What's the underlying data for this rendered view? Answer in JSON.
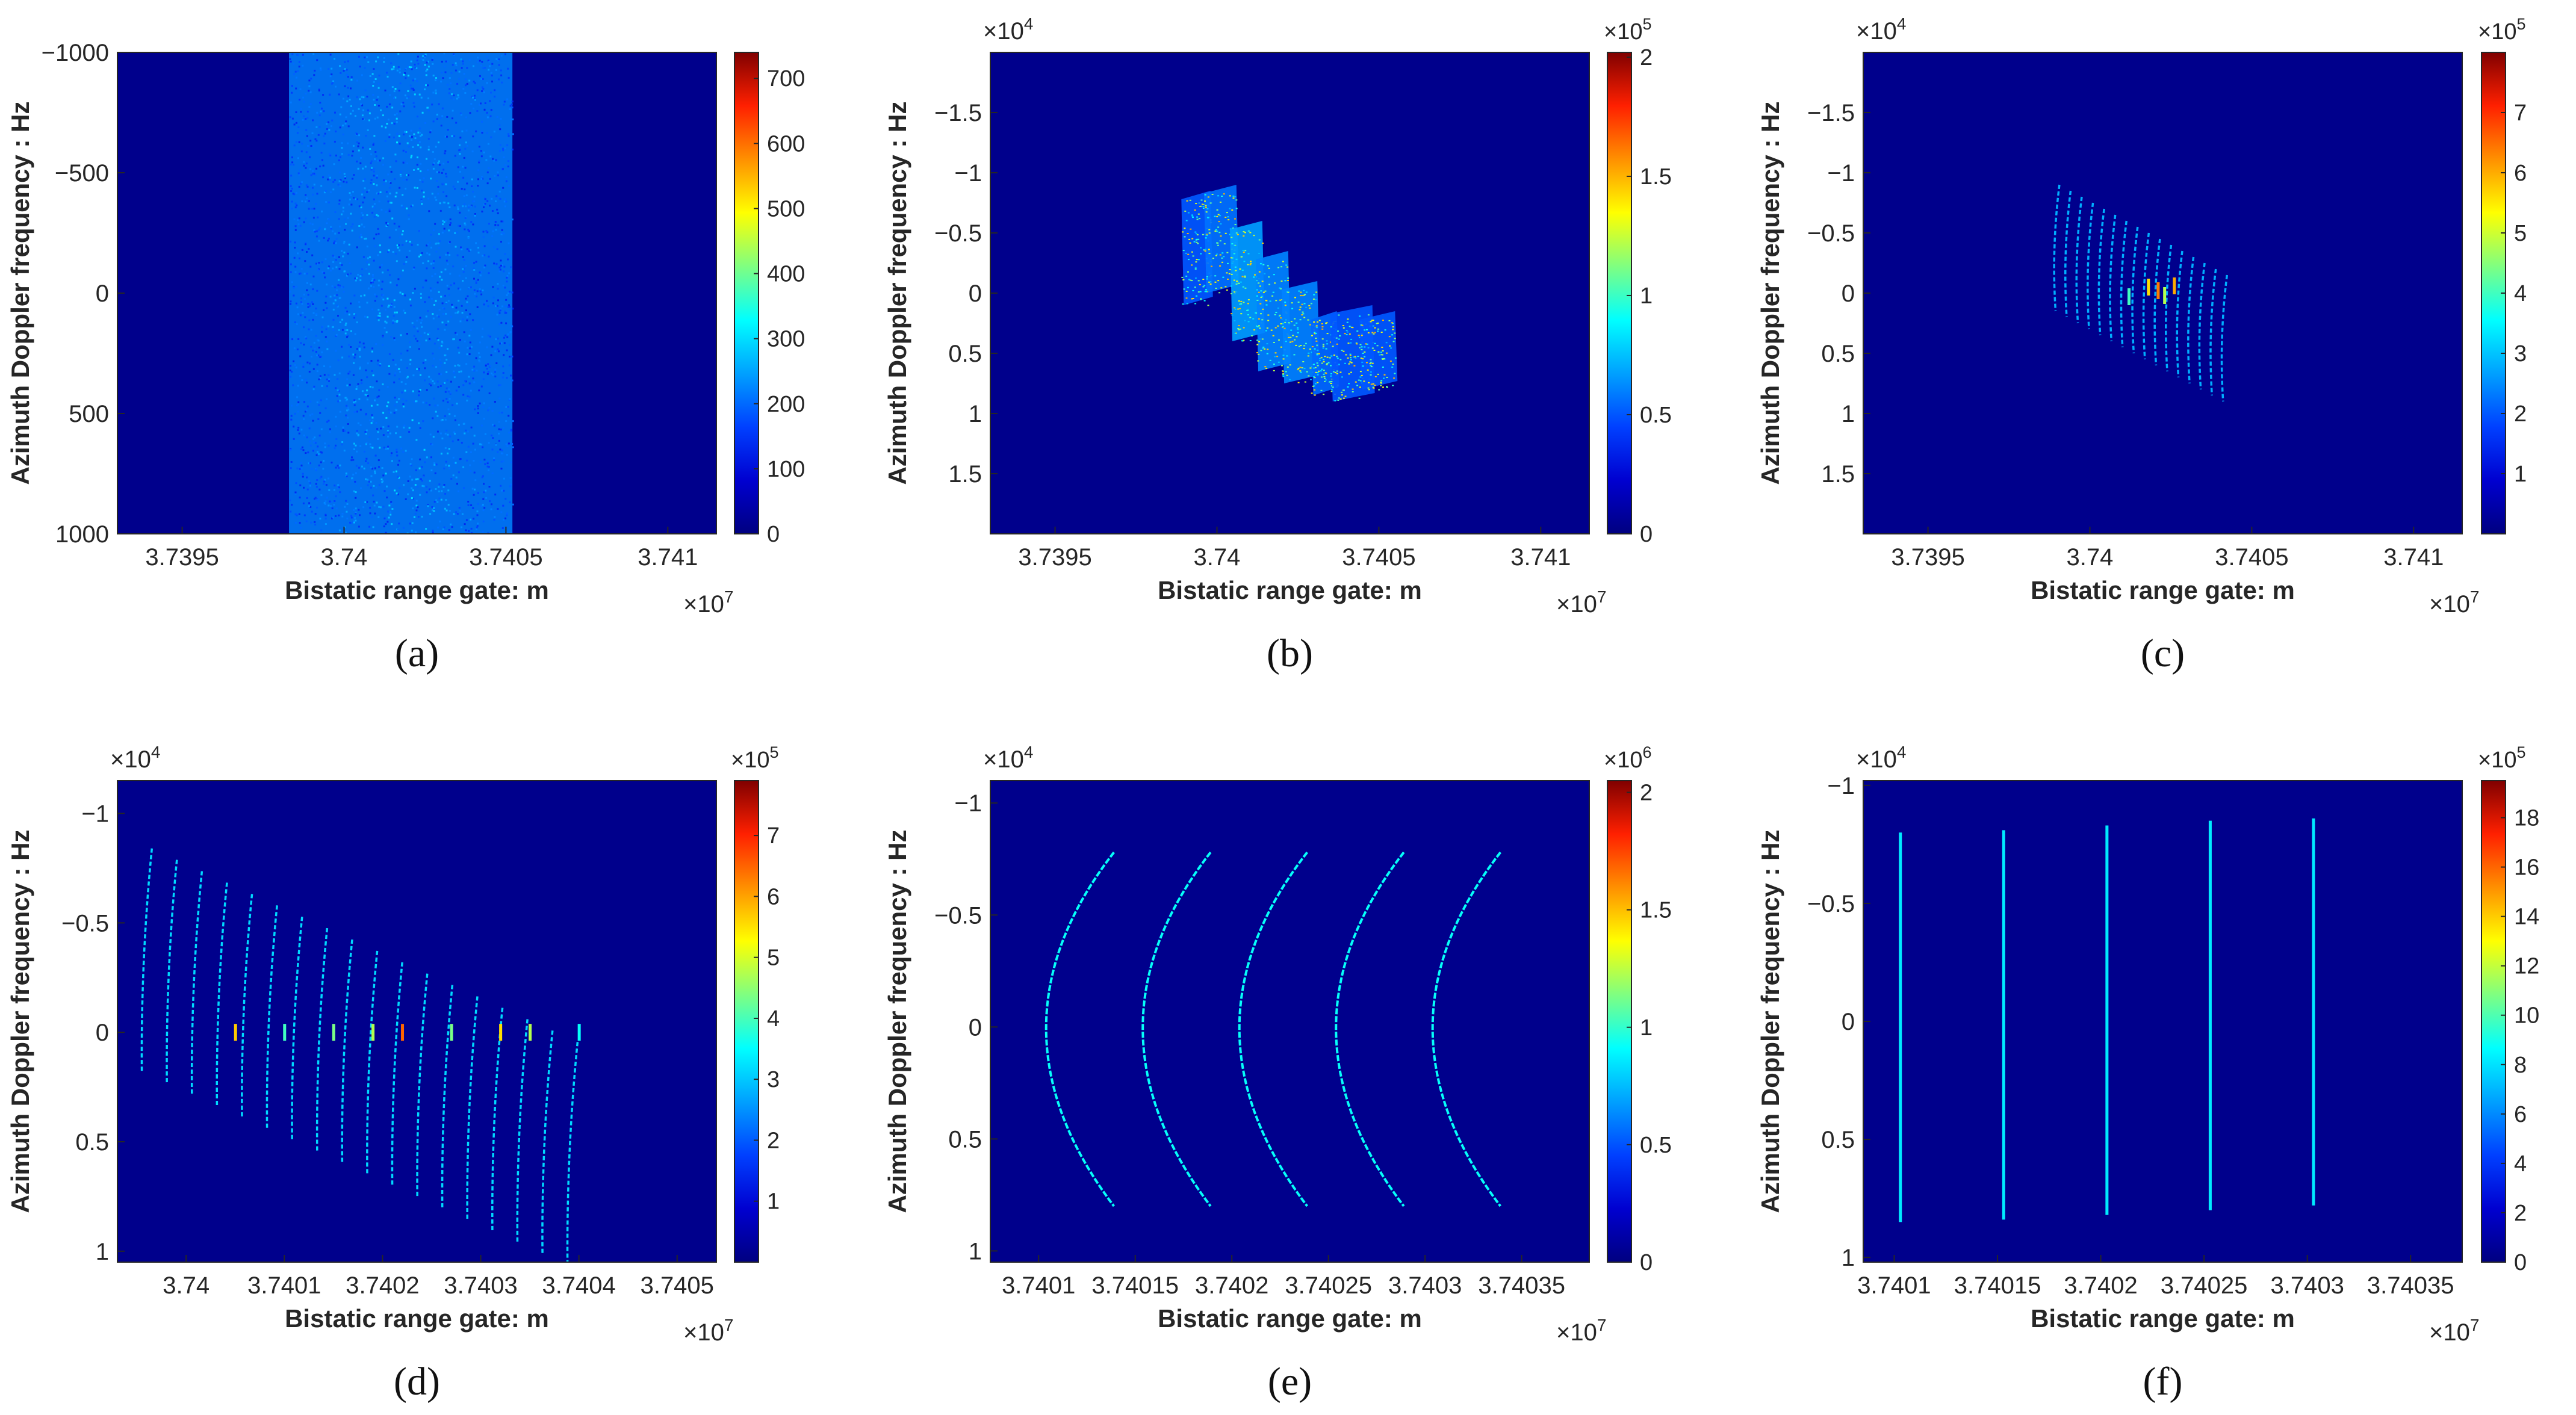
{
  "figure": {
    "colors": {
      "background": "#00008c",
      "colormap": [
        "#000080",
        "#0000d0",
        "#0040ff",
        "#00a0ff",
        "#00ffff",
        "#80ff80",
        "#ffff00",
        "#ff9000",
        "#ff2000",
        "#800000"
      ],
      "axis_text": "#262626"
    }
  },
  "chart_data": [
    {
      "id": "a",
      "caption": "(a)",
      "type": "heatmap",
      "xlabel": "Bistatic range gate: m",
      "ylabel": "Azimuth Doppler frequency : Hz",
      "x_multiplier": "×10",
      "x_exponent": "7",
      "y_multiplier": "",
      "y_exponent": "",
      "xlim": [
        3.7393,
        3.74115
      ],
      "xticks": [
        3.7395,
        3.74,
        3.7405,
        3.741
      ],
      "xtick_labels": [
        "3.7395",
        "3.74",
        "3.7405",
        "3.741"
      ],
      "ylim": [
        -1000,
        1000
      ],
      "yticks": [
        -1000,
        -500,
        0,
        500,
        1000
      ],
      "ytick_labels": [
        "−1000",
        "−500",
        "0",
        "500",
        "1000"
      ],
      "colorbar": {
        "range": [
          0,
          740
        ],
        "ticks": [
          0,
          100,
          200,
          300,
          400,
          500,
          600,
          700
        ],
        "tick_labels": [
          "0",
          "100",
          "200",
          "300",
          "400",
          "500",
          "600",
          "700"
        ],
        "multiplier": "",
        "exponent": ""
      },
      "features": [
        {
          "kind": "band",
          "x_start": 3.73983,
          "x_end": 3.74052,
          "level": 0.3
        }
      ]
    },
    {
      "id": "b",
      "caption": "(b)",
      "type": "heatmap",
      "xlabel": "Bistatic range gate: m",
      "ylabel": "Azimuth Doppler frequency : Hz",
      "x_multiplier": "×10",
      "x_exponent": "7",
      "y_multiplier": "×10",
      "y_exponent": "4",
      "xlim": [
        3.7393,
        3.74115
      ],
      "xticks": [
        3.7395,
        3.74,
        3.7405,
        3.741
      ],
      "xtick_labels": [
        "3.7395",
        "3.74",
        "3.7405",
        "3.741"
      ],
      "ylim": [
        -2.0,
        2.0
      ],
      "yticks": [
        -1.5,
        -1,
        -0.5,
        0,
        0.5,
        1,
        1.5
      ],
      "ytick_labels": [
        "−1.5",
        "−1",
        "−0.5",
        "0",
        "0.5",
        "1",
        "1.5"
      ],
      "colorbar": {
        "range": [
          0,
          2.02
        ],
        "ticks": [
          0,
          0.5,
          1,
          1.5,
          2
        ],
        "tick_labels": [
          "0",
          "0.5",
          "1",
          "1.5",
          "2"
        ],
        "multiplier": "×10",
        "exponent": "5"
      },
      "features": [
        {
          "kind": "tile",
          "x0": 3.73989,
          "x1": 3.73998,
          "y0": -0.85,
          "y1": 0.1,
          "level": 0.25
        },
        {
          "kind": "tile",
          "x0": 3.73996,
          "x1": 3.74006,
          "y0": -0.9,
          "y1": 0.0,
          "level": 0.28
        },
        {
          "kind": "tile",
          "x0": 3.74004,
          "x1": 3.74014,
          "y0": -0.6,
          "y1": 0.4,
          "level": 0.33
        },
        {
          "kind": "tile",
          "x0": 3.74012,
          "x1": 3.74022,
          "y0": -0.35,
          "y1": 0.65,
          "level": 0.3
        },
        {
          "kind": "tile",
          "x0": 3.7402,
          "x1": 3.74031,
          "y0": -0.1,
          "y1": 0.75,
          "level": 0.3
        },
        {
          "kind": "tile",
          "x0": 3.74029,
          "x1": 3.74037,
          "y0": 0.15,
          "y1": 0.85,
          "level": 0.27
        },
        {
          "kind": "tile",
          "x0": 3.74035,
          "x1": 3.74048,
          "y0": 0.1,
          "y1": 0.9,
          "level": 0.25
        },
        {
          "kind": "tile",
          "x0": 3.74044,
          "x1": 3.74055,
          "y0": 0.15,
          "y1": 0.8,
          "level": 0.25
        }
      ]
    },
    {
      "id": "c",
      "caption": "(c)",
      "type": "heatmap",
      "xlabel": "Bistatic range gate: m",
      "ylabel": "Azimuth Doppler frequency : Hz",
      "x_multiplier": "×10",
      "x_exponent": "7",
      "y_multiplier": "×10",
      "y_exponent": "4",
      "xlim": [
        3.7393,
        3.74115
      ],
      "xticks": [
        3.7395,
        3.74,
        3.7405,
        3.741
      ],
      "xtick_labels": [
        "3.7395",
        "3.74",
        "3.7405",
        "3.741"
      ],
      "ylim": [
        -2.0,
        2.0
      ],
      "yticks": [
        -1.5,
        -1,
        -0.5,
        0,
        0.5,
        1,
        1.5
      ],
      "ytick_labels": [
        "−1.5",
        "−1",
        "−0.5",
        "0",
        "0.5",
        "1",
        "1.5"
      ],
      "colorbar": {
        "range": [
          0,
          8.0
        ],
        "ticks": [
          1,
          2,
          3,
          4,
          5,
          6,
          7
        ],
        "tick_labels": [
          "1",
          "2",
          "3",
          "4",
          "5",
          "6",
          "7"
        ],
        "multiplier": "×10",
        "exponent": "5"
      },
      "features": [
        {
          "kind": "arcs",
          "x_start": 3.7399,
          "x_step": 3.45e-05,
          "count": 16,
          "y_top_start": -0.9,
          "y_top_step": 0.05,
          "y_len": 1.05,
          "bend": 1e-05,
          "level": 0.35
        },
        {
          "kind": "spots",
          "points": [
            [
              3.74018,
              -0.05,
              0.7
            ],
            [
              3.74021,
              -0.02,
              0.8
            ],
            [
              3.74026,
              -0.06,
              0.75
            ],
            [
              3.74023,
              0.02,
              0.6
            ],
            [
              3.74012,
              0.03,
              0.5
            ]
          ]
        }
      ]
    },
    {
      "id": "d",
      "caption": "(d)",
      "type": "heatmap",
      "xlabel": "Bistatic range gate: m",
      "ylabel": "Azimuth Doppler frequency : Hz",
      "x_multiplier": "×10",
      "x_exponent": "7",
      "y_multiplier": "×10",
      "y_exponent": "4",
      "xlim": [
        3.73993,
        3.74054
      ],
      "xticks": [
        3.74,
        3.7401,
        3.7402,
        3.7403,
        3.7404,
        3.7405
      ],
      "xtick_labels": [
        "3.74",
        "3.7401",
        "3.7402",
        "3.7403",
        "3.7404",
        "3.7405"
      ],
      "ylim": [
        -1.15,
        1.05
      ],
      "yticks": [
        -1,
        -0.5,
        0,
        0.5,
        1
      ],
      "ytick_labels": [
        "−1",
        "−0.5",
        "0",
        "0.5",
        "1"
      ],
      "colorbar": {
        "range": [
          0,
          7.9
        ],
        "ticks": [
          1,
          2,
          3,
          4,
          5,
          6,
          7
        ],
        "tick_labels": [
          "1",
          "2",
          "3",
          "4",
          "5",
          "6",
          "7"
        ],
        "multiplier": "×10",
        "exponent": "5"
      },
      "features": [
        {
          "kind": "arcs",
          "x_start": 3.73996,
          "x_step": 2.55e-05,
          "count": 18,
          "y_top_start": -0.84,
          "y_top_step": 0.052,
          "y_len": 1.02,
          "bend": 8.5e-06,
          "level": 0.4
        },
        {
          "kind": "spots",
          "points": [
            [
              3.74005,
              0.0,
              0.72
            ],
            [
              3.7401,
              0.0,
              0.5
            ],
            [
              3.74015,
              0.0,
              0.55
            ],
            [
              3.74019,
              0.0,
              0.6
            ],
            [
              3.74022,
              0.0,
              0.82
            ],
            [
              3.74027,
              0.0,
              0.55
            ],
            [
              3.74032,
              0.0,
              0.7
            ],
            [
              3.74035,
              0.0,
              0.6
            ],
            [
              3.7404,
              0.0,
              0.45
            ]
          ]
        }
      ]
    },
    {
      "id": "e",
      "caption": "(e)",
      "type": "heatmap",
      "xlabel": "Bistatic range gate: m",
      "ylabel": "Azimuth Doppler frequency : Hz",
      "x_multiplier": "×10",
      "x_exponent": "7",
      "y_multiplier": "×10",
      "y_exponent": "4",
      "xlim": [
        3.740075,
        3.740385
      ],
      "xticks": [
        3.7401,
        3.74015,
        3.7402,
        3.74025,
        3.7403,
        3.74035
      ],
      "xtick_labels": [
        "3.7401",
        "3.74015",
        "3.7402",
        "3.74025",
        "3.7403",
        "3.74035"
      ],
      "ylim": [
        -1.1,
        1.05
      ],
      "yticks": [
        -1,
        -0.5,
        0,
        0.5,
        1
      ],
      "ytick_labels": [
        "−1",
        "−0.5",
        "0",
        "0.5",
        "1"
      ],
      "colorbar": {
        "range": [
          0,
          2.05
        ],
        "ticks": [
          0,
          0.5,
          1,
          1.5,
          2
        ],
        "tick_labels": [
          "0",
          "0.5",
          "1",
          "1.5",
          "2"
        ],
        "multiplier": "×10",
        "exponent": "6"
      },
      "features": [
        {
          "kind": "hyperbolas",
          "centers": [
            3.740103,
            3.740153,
            3.740203,
            3.740253,
            3.740303
          ],
          "width": 3.6e-05,
          "y_top": -0.78,
          "y_bottom": 0.8,
          "level": 0.45
        }
      ]
    },
    {
      "id": "f",
      "caption": "(f)",
      "type": "heatmap",
      "xlabel": "Bistatic range gate: m",
      "ylabel": "Azimuth Doppler frequency : Hz",
      "x_multiplier": "×10",
      "x_exponent": "7",
      "y_multiplier": "×10",
      "y_exponent": "4",
      "xlim": [
        3.740085,
        3.740375
      ],
      "xticks": [
        3.7401,
        3.74015,
        3.7402,
        3.74025,
        3.7403,
        3.74035
      ],
      "xtick_labels": [
        "3.7401",
        "3.74015",
        "3.7402",
        "3.74025",
        "3.7403",
        "3.74035"
      ],
      "ylim": [
        -1.02,
        1.02
      ],
      "yticks": [
        -1,
        -0.5,
        0,
        0.5,
        1
      ],
      "ytick_labels": [
        "−1",
        "−0.5",
        "0",
        "0.5",
        "1"
      ],
      "colorbar": {
        "range": [
          0,
          19.5
        ],
        "ticks": [
          0,
          2,
          4,
          6,
          8,
          10,
          12,
          14,
          16,
          18
        ],
        "tick_labels": [
          "0",
          "2",
          "4",
          "6",
          "8",
          "10",
          "12",
          "14",
          "16",
          "18"
        ],
        "multiplier": "×10",
        "exponent": "5"
      },
      "features": [
        {
          "kind": "vlines",
          "lines": [
            [
              3.740103,
              -0.8,
              0.85
            ],
            [
              3.740153,
              -0.81,
              0.84
            ],
            [
              3.740203,
              -0.83,
              0.82
            ],
            [
              3.740253,
              -0.85,
              0.8
            ],
            [
              3.740303,
              -0.86,
              0.78
            ]
          ],
          "level": 0.42
        }
      ]
    }
  ]
}
